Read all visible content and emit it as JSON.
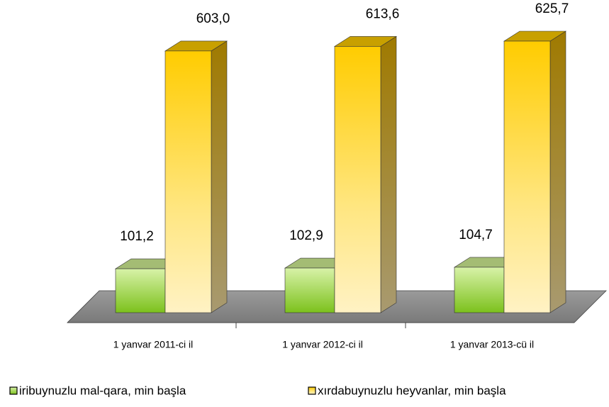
{
  "chart_data": {
    "type": "bar3d",
    "categories": [
      "1 yanvar 2011-ci il",
      "1 yanvar 2012-ci il",
      "1 yanvar 2013-cü il"
    ],
    "series": [
      {
        "name": "iribuynuzlu mal-qara, min başla",
        "color": "#8cc63f",
        "values": [
          101.2,
          102.9,
          104.7
        ],
        "value_labels": [
          "101,2",
          "102,9",
          "104,7"
        ]
      },
      {
        "name": "xırdabuynuzlu heyvanlar, min başla",
        "color": "#ffcc00",
        "values": [
          603.0,
          613.6,
          625.7
        ],
        "value_labels": [
          "603,0",
          "613,6",
          "625,7"
        ]
      }
    ],
    "legend": "bottom"
  }
}
